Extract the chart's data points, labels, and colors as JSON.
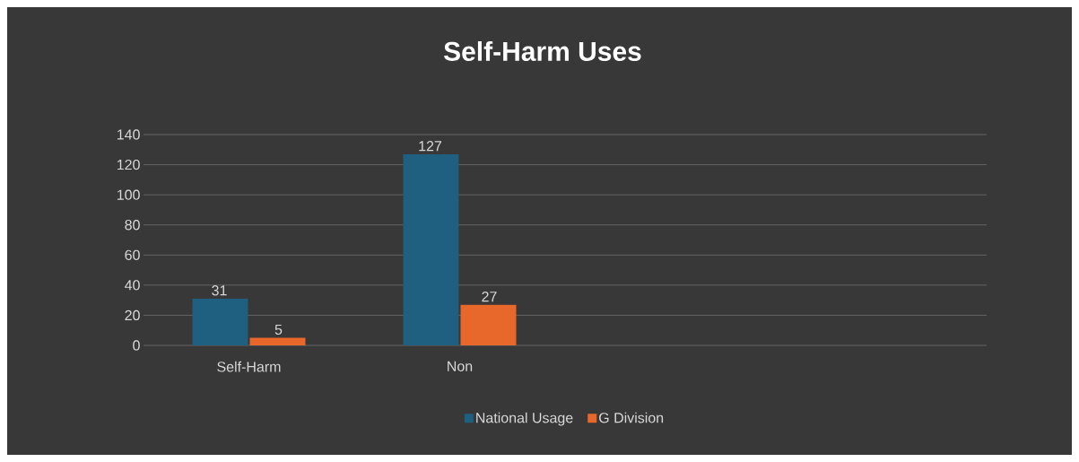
{
  "chart_data": {
    "type": "bar",
    "title": "Self-Harm Uses",
    "categories": [
      "Self-Harm",
      "Non",
      null,
      null
    ],
    "series": [
      {
        "name": "National Usage",
        "color": "#1f5f80",
        "values": [
          31,
          127,
          null,
          null
        ]
      },
      {
        "name": "G Division",
        "color": "#e8672a",
        "values": [
          5,
          27,
          null,
          null
        ]
      }
    ],
    "ylim": [
      0,
      140
    ],
    "yticks": [
      0,
      20,
      40,
      60,
      80,
      100,
      120,
      140
    ],
    "grid": "y",
    "legend": "bottom",
    "data_labels": true
  }
}
